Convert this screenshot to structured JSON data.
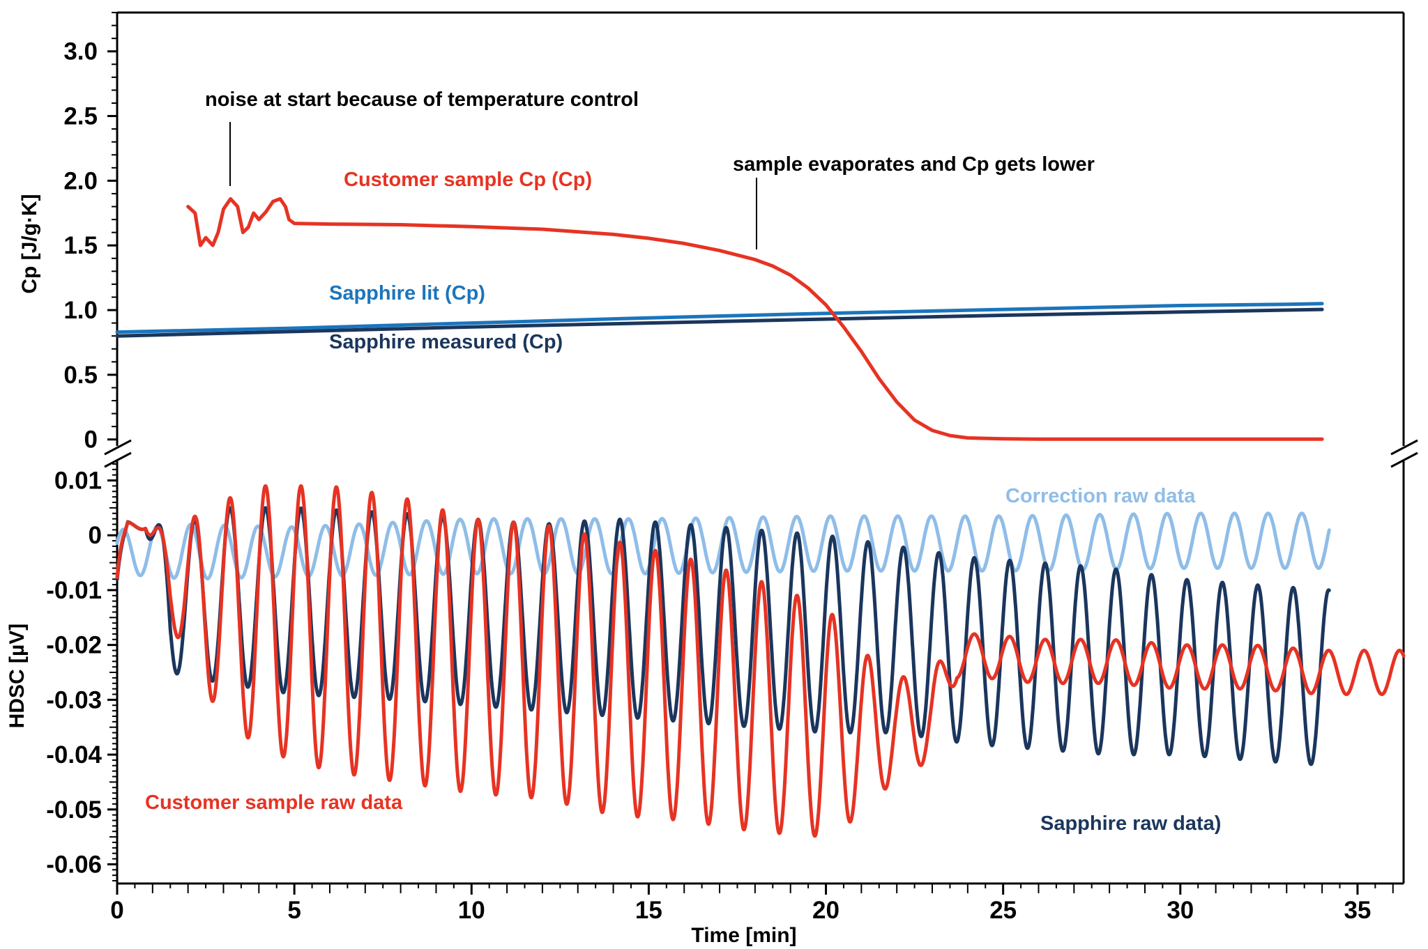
{
  "chart_data": [
    {
      "type": "line",
      "panel": "top",
      "ylabel": "Cp [J/g·K]",
      "xlim": [
        0,
        36.3
      ],
      "ylim": [
        -0.05,
        3.3
      ],
      "yticks": [
        0,
        0.5,
        1.0,
        1.5,
        2.0,
        2.5,
        3.0
      ],
      "ytick_labels": [
        "0",
        "0.5",
        "1.0",
        "1.5",
        "2.0",
        "2.5",
        "3.0"
      ],
      "series": [
        {
          "name": "Customer sample Cp (Cp)",
          "color": "#e63323",
          "x": [
            2.0,
            2.2,
            2.35,
            2.5,
            2.7,
            2.85,
            3.0,
            3.2,
            3.4,
            3.55,
            3.7,
            3.85,
            4.0,
            4.2,
            4.4,
            4.6,
            4.75,
            4.85,
            5.0,
            6,
            8,
            10,
            12,
            14,
            15,
            16,
            17,
            18,
            18.5,
            19,
            19.5,
            20,
            20.5,
            21,
            21.5,
            22,
            22.5,
            23,
            23.5,
            24,
            25,
            26,
            28,
            30,
            32,
            34
          ],
          "y": [
            1.8,
            1.75,
            1.5,
            1.56,
            1.5,
            1.6,
            1.78,
            1.86,
            1.8,
            1.6,
            1.64,
            1.75,
            1.7,
            1.76,
            1.84,
            1.86,
            1.8,
            1.7,
            1.67,
            1.665,
            1.66,
            1.645,
            1.625,
            1.585,
            1.555,
            1.515,
            1.46,
            1.39,
            1.34,
            1.27,
            1.17,
            1.04,
            0.87,
            0.68,
            0.47,
            0.29,
            0.15,
            0.07,
            0.03,
            0.012,
            0.005,
            0.003,
            0.002,
            0.002,
            0.002,
            0.002
          ]
        },
        {
          "name": "Sapphire lit (Cp)",
          "color": "#1b75bc",
          "x": [
            0,
            5,
            10,
            15,
            20,
            25,
            30,
            33,
            34
          ],
          "y": [
            0.83,
            0.86,
            0.9,
            0.94,
            0.975,
            1.005,
            1.035,
            1.045,
            1.05
          ]
        },
        {
          "name": "Sapphire measured (Cp)",
          "color": "#1b365d",
          "x": [
            0,
            5,
            10,
            15,
            20,
            25,
            30,
            34
          ],
          "y": [
            0.8,
            0.835,
            0.87,
            0.9,
            0.93,
            0.96,
            0.985,
            1.005
          ]
        }
      ],
      "annotations": [
        {
          "text": "noise at start because of temperature control",
          "x": 3.2,
          "y": 1.9
        },
        {
          "text": "sample evaporates and Cp gets lower",
          "x": 18.0,
          "y": 1.38
        }
      ]
    },
    {
      "type": "line",
      "panel": "bottom",
      "ylabel": "HDSC [µV]",
      "xlabel": "Time [min]",
      "xlim": [
        0,
        36.3
      ],
      "ylim": [
        -0.0635,
        0.0135
      ],
      "xticks": [
        0,
        5,
        10,
        15,
        20,
        25,
        30,
        35
      ],
      "yticks": [
        0.01,
        0,
        -0.01,
        -0.02,
        -0.03,
        -0.04,
        -0.05,
        -0.06
      ],
      "ytick_labels": [
        "0.01",
        "0",
        "-0.01",
        "-0.02",
        "-0.03",
        "-0.04",
        "-0.05",
        "-0.06"
      ],
      "series": [
        {
          "name": "Customer sample raw data",
          "color": "#e63323",
          "x_range": [
            0,
            36.3
          ],
          "period_min": 1.0,
          "envelope_time": [
            0,
            0.3,
            0.8,
            1.5,
            2.5,
            4,
            6,
            8,
            10,
            12,
            14,
            16,
            18,
            20,
            21,
            22,
            23,
            23.7,
            24.5,
            26,
            28,
            30,
            32,
            34,
            36.3
          ],
          "envelope_center": [
            -0.01,
            0.002,
            0.002,
            -0.008,
            -0.012,
            -0.015,
            -0.017,
            -0.019,
            -0.022,
            -0.023,
            -0.026,
            -0.028,
            -0.031,
            -0.034,
            -0.036,
            -0.035,
            -0.033,
            -0.022,
            -0.022,
            -0.023,
            -0.023,
            -0.024,
            -0.024,
            -0.025,
            -0.025
          ],
          "envelope_amplitude": [
            0.006,
            0.0005,
            0.001,
            0.008,
            0.017,
            0.024,
            0.026,
            0.026,
            0.025,
            0.025,
            0.025,
            0.024,
            0.023,
            0.021,
            0.015,
            0.009,
            0.008,
            0.004,
            0.004,
            0.004,
            0.004,
            0.004,
            0.004,
            0.004,
            0.004
          ]
        },
        {
          "name": "Sapphire raw data)",
          "color": "#1b365d",
          "x_range": [
            0,
            34.2
          ],
          "period_min": 1.0,
          "envelope_time": [
            0,
            0.3,
            0.8,
            1.5,
            3,
            5,
            8,
            10,
            12,
            14,
            16,
            18,
            20,
            22,
            24,
            26,
            28,
            30,
            32,
            34.2
          ],
          "envelope_center": [
            -0.01,
            0.002,
            0.002,
            -0.012,
            -0.011,
            -0.012,
            -0.013,
            -0.014,
            -0.015,
            -0.015,
            -0.016,
            -0.017,
            -0.018,
            -0.019,
            -0.021,
            -0.022,
            -0.023,
            -0.024,
            -0.025,
            -0.026
          ],
          "envelope_amplitude": [
            0.005,
            0.0006,
            0.001,
            0.013,
            0.016,
            0.017,
            0.017,
            0.017,
            0.017,
            0.018,
            0.018,
            0.018,
            0.018,
            0.017,
            0.017,
            0.017,
            0.017,
            0.016,
            0.016,
            0.016
          ]
        },
        {
          "name": "Correction raw data",
          "color": "#8fbde8",
          "x_range": [
            0,
            34.2
          ],
          "period_min": 0.95,
          "envelope_time": [
            0,
            2,
            5,
            10,
            15,
            20,
            25,
            30,
            34.2
          ],
          "envelope_center": [
            -0.003,
            -0.003,
            -0.003,
            -0.002,
            -0.002,
            -0.0015,
            -0.0015,
            -0.001,
            -0.001
          ],
          "envelope_amplitude": [
            0.004,
            0.005,
            0.0045,
            0.005,
            0.005,
            0.005,
            0.005,
            0.005,
            0.005
          ]
        }
      ]
    }
  ]
}
